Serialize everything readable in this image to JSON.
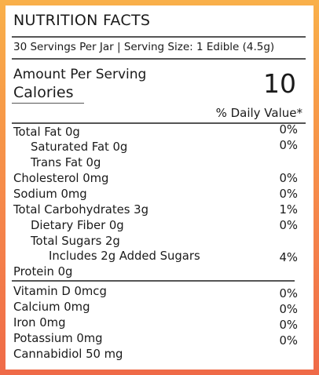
{
  "title": "NUTRITION FACTS",
  "serving_info": "30 Servings Per Jar | Serving Size: 1 Edible (4.5g)",
  "amount_per_serving": "Amount Per Serving",
  "calories_label": "Calories",
  "calories_value": "10",
  "daily_value_header": "% Daily Value*",
  "nutrients": [
    {
      "label": "Total Fat 0g",
      "dv": "0%"
    },
    {
      "label": "Saturated Fat 0g",
      "dv": "0%"
    },
    {
      "label": "Trans Fat 0g",
      "dv": ""
    },
    {
      "label": "Cholesterol 0mg",
      "dv": "0%"
    },
    {
      "label": "Sodium 0mg",
      "dv": "0%"
    },
    {
      "label": "Total Carbohydrates 3g",
      "dv": "1%"
    },
    {
      "label": "Dietary Fiber 0g",
      "dv": "0%"
    },
    {
      "label": "Total Sugars 2g",
      "dv": ""
    },
    {
      "label": "Includes 2g Added Sugars",
      "dv": "4%"
    },
    {
      "label": "Protein 0g",
      "dv": ""
    }
  ],
  "minerals": [
    {
      "label": "Vitamin D 0mcg",
      "dv": "0%"
    },
    {
      "label": "Calcium 0mg",
      "dv": "0%"
    },
    {
      "label": "Iron 0mg",
      "dv": "0%"
    },
    {
      "label": "Potassium 0mg",
      "dv": "0%"
    },
    {
      "label": "Cannabidiol 50 mg",
      "dv": ""
    }
  ],
  "colors": {
    "border_top": "#f9b04a",
    "border_bottom": "#ef6a48",
    "text": "#1a1a1a",
    "rule": "#555555"
  }
}
